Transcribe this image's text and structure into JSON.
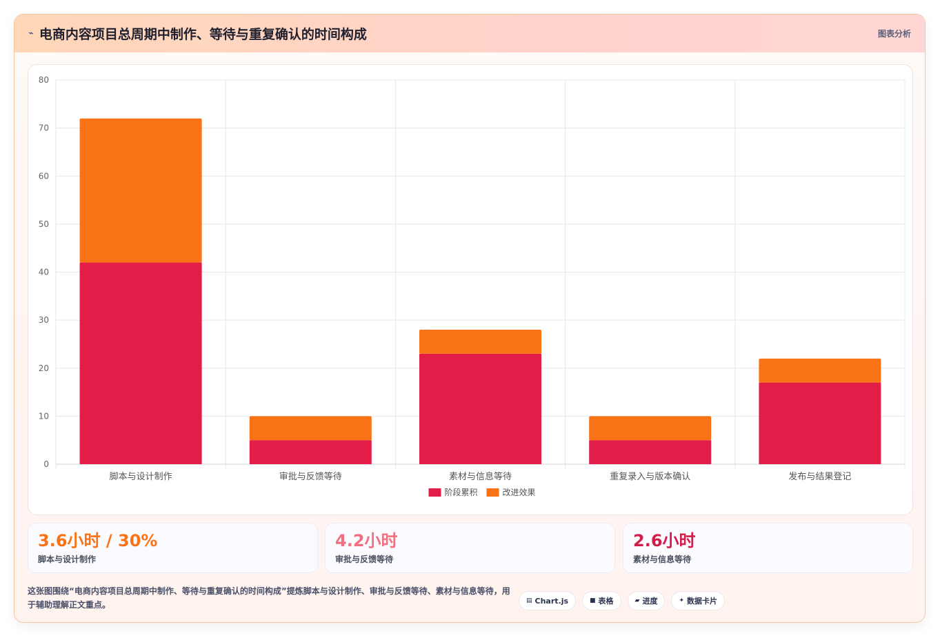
{
  "header": {
    "logo_icon": "⌁",
    "title": "电商内容项目总周期中制作、等待与重复确认的时间构成",
    "tag": "图表分析"
  },
  "chart_data": {
    "type": "bar",
    "stacked": true,
    "categories": [
      "脚本与设计制作",
      "审批与反馈等待",
      "素材与信息等待",
      "重复录入与版本确认",
      "发布与结果登记"
    ],
    "series": [
      {
        "name": "阶段累积",
        "color": "#e11d48",
        "values": [
          42,
          5,
          23,
          5,
          17
        ]
      },
      {
        "name": "改进效果",
        "color": "#f97316",
        "values": [
          30,
          5,
          5,
          5,
          5
        ]
      }
    ],
    "ylim": [
      0,
      80
    ],
    "yticks": [
      0,
      10,
      20,
      30,
      40,
      50,
      60,
      70,
      80
    ],
    "grid": true,
    "legend": "bottom"
  },
  "stats": [
    {
      "value": "3.6小时 / 30%",
      "label": "脚本与设计制作",
      "color": "#f97316"
    },
    {
      "value": "4.2小时",
      "label": "审批与反馈等待",
      "color": "#f0707f"
    },
    {
      "value": "2.6小时",
      "label": "素材与信息等待",
      "color": "#d21d4a"
    }
  ],
  "description": "这张图围绕“电商内容项目总周期中制作、等待与重复确认的时间构成”提炼脚本与设计制作、审批与反馈等待、素材与信息等待，用于辅助理解正文重点。",
  "pills": [
    {
      "icon": "▤",
      "icon_name": "chart-icon",
      "label": "Chart.js"
    },
    {
      "icon": "■",
      "icon_name": "table-icon",
      "label": "表格"
    },
    {
      "icon": "▰",
      "icon_name": "progress-icon",
      "label": "进度"
    },
    {
      "icon": "✦",
      "icon_name": "sparkle-icon",
      "label": "数据卡片"
    }
  ]
}
